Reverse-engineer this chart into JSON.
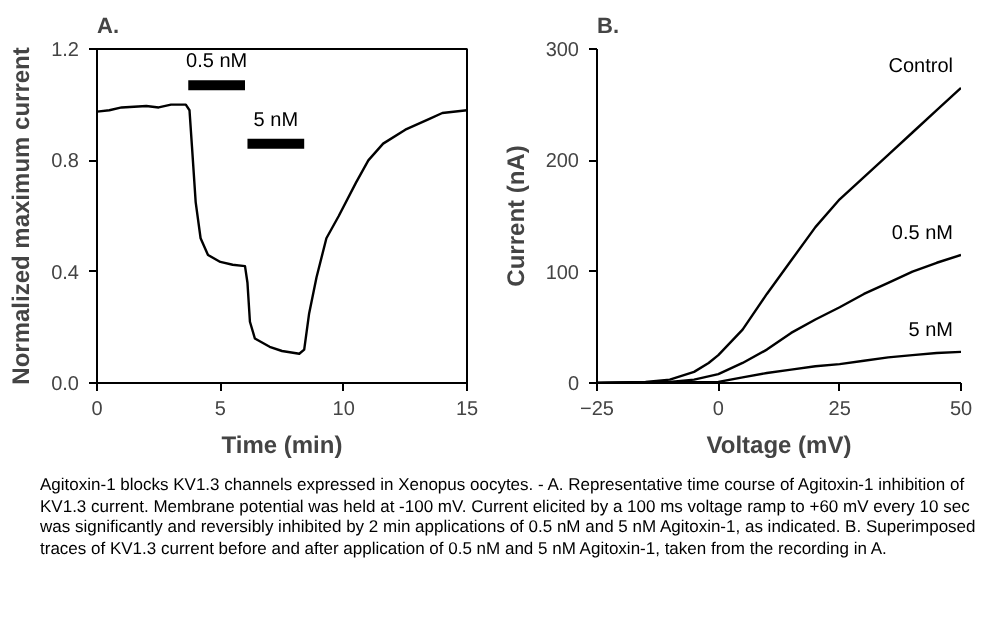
{
  "chart_data": [
    {
      "type": "line",
      "title": "A.",
      "xlabel": "Time (min)",
      "ylabel": "Normalized maximum current",
      "xlim": [
        0,
        15
      ],
      "xticks": [
        0,
        5,
        10,
        15
      ],
      "ylim": [
        0,
        1.2
      ],
      "yticks": [
        {
          "value": 0,
          "label": "0.0"
        },
        0.4,
        0.8,
        1.2
      ],
      "grid": false,
      "marker": "none",
      "line_style": "solid",
      "series": [
        {
          "color": "#000000",
          "x": [
            0,
            0.5,
            1,
            2,
            2.5,
            3,
            3.6,
            3.75,
            3.85,
            4.0,
            4.2,
            4.5,
            5,
            5.5,
            6.0,
            6.1,
            6.2,
            6.4,
            7,
            7.5,
            8.2,
            8.4,
            8.6,
            8.9,
            9.3,
            9.8,
            10.5,
            11,
            11.6,
            12.5,
            13.5,
            14,
            15
          ],
          "values": [
            0.975,
            0.98,
            0.99,
            0.995,
            0.99,
            1.0,
            1.0,
            0.98,
            0.85,
            0.65,
            0.52,
            0.46,
            0.435,
            0.425,
            0.42,
            0.36,
            0.22,
            0.16,
            0.13,
            0.115,
            0.105,
            0.12,
            0.25,
            0.38,
            0.52,
            0.6,
            0.72,
            0.8,
            0.86,
            0.91,
            0.95,
            0.97,
            0.98
          ]
        },
        {
          "name": "0.5 nM",
          "color": "#000000",
          "x": [
            3.7,
            6.0
          ],
          "values": [
            1.07,
            1.07
          ]
        },
        {
          "name": "5 nM",
          "color": "#000000",
          "x": [
            6.1,
            8.4
          ],
          "values": [
            0.86,
            0.86
          ]
        }
      ],
      "annotations": [
        "Agitoxin-1 blocks KV1.3 channels expressed in Xenopus oocytes. - A. Representative time course of Agitoxin-1 inhibition of KV1.3 current. Membrane potential was held at -100 mV. Current elicited by a 100 ms voltage ramp to +60 mV every 10 sec was significantly and reversibly inhibited by 2 min applications of 0.5 nM and 5 nM Agitoxin-1, as indicated. B. Superimposed traces of KV1.3 current before and after application of 0.5 nM and 5 nM Agitoxin-1, taken from the recording in A."
      ]
    },
    {
      "type": "line",
      "title": "B.",
      "xlabel": "Voltage (mV)",
      "ylabel": "Current (nA)",
      "xlim": [
        -25,
        50
      ],
      "xticks": [
        -25,
        0,
        25,
        50
      ],
      "ylim": [
        0,
        300
      ],
      "yticks": [
        0,
        100,
        200,
        300
      ],
      "grid": false,
      "marker": "none",
      "line_style": "solid",
      "series": [
        {
          "name": "Control",
          "color": "#000000",
          "x": [
            -25,
            -15,
            -10,
            -5,
            -2,
            0,
            5,
            10,
            15,
            20,
            25,
            30,
            35,
            40,
            45,
            50
          ],
          "values": [
            0,
            1,
            3,
            10,
            18,
            25,
            48,
            80,
            110,
            140,
            165,
            185,
            205,
            225,
            245,
            265
          ]
        },
        {
          "name": "0.5 nM",
          "color": "#000000",
          "x": [
            -25,
            -10,
            -5,
            0,
            5,
            10,
            15,
            20,
            25,
            30,
            35,
            40,
            45,
            50
          ],
          "values": [
            0,
            1,
            3,
            8,
            18,
            30,
            45,
            57,
            68,
            80,
            90,
            100,
            108,
            115
          ]
        },
        {
          "name": "5 nM",
          "color": "#000000",
          "x": [
            -25,
            0,
            5,
            10,
            15,
            20,
            25,
            30,
            35,
            40,
            45,
            50
          ],
          "values": [
            0,
            1,
            5,
            9,
            12,
            15,
            17,
            20,
            23,
            25,
            27,
            28
          ]
        }
      ]
    }
  ]
}
